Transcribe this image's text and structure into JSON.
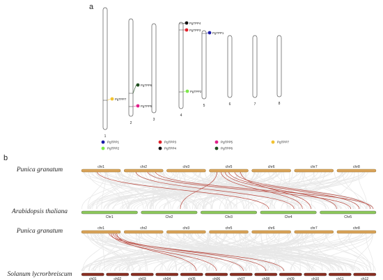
{
  "panel_a": {
    "label": "a",
    "chromosomes": [
      {
        "id": "1",
        "label": "1",
        "length": 175
      },
      {
        "id": "2",
        "label": "2",
        "length": 140
      },
      {
        "id": "3",
        "label": "3",
        "length": 128
      },
      {
        "id": "4",
        "label": "4",
        "length": 124
      },
      {
        "id": "5",
        "label": "5",
        "length": 98
      },
      {
        "id": "6",
        "label": "6",
        "length": 89
      },
      {
        "id": "7",
        "label": "7",
        "length": 89
      },
      {
        "id": "8",
        "label": "8",
        "length": 88
      }
    ],
    "genes": [
      {
        "name": "PgTPP1",
        "chromosome": "5",
        "color": "#1a1aa8"
      },
      {
        "name": "PgTPP2",
        "chromosome": "4",
        "color": "#7ee84a"
      },
      {
        "name": "PgTPP3",
        "chromosome": "4",
        "color": "#e0202a"
      },
      {
        "name": "PgTPP4",
        "chromosome": "4",
        "color": "#111111"
      },
      {
        "name": "PgTPP5",
        "chromosome": "2",
        "color": "#e0208a"
      },
      {
        "name": "PgTPP6",
        "chromosome": "2",
        "color": "#1f4d1f"
      },
      {
        "name": "PgTPP7",
        "chromosome": "1",
        "color": "#f2c230"
      }
    ],
    "legend": [
      {
        "name": "PgTPP1",
        "color": "#1a1aa8"
      },
      {
        "name": "PgTPP3",
        "color": "#e0202a"
      },
      {
        "name": "PgTPP5",
        "color": "#e0208a"
      },
      {
        "name": "PgTPP7",
        "color": "#f2c230"
      },
      {
        "name": "PgTPP2",
        "color": "#7ee84a"
      },
      {
        "name": "PgTPP4",
        "color": "#111111"
      },
      {
        "name": "PgTPP6",
        "color": "#1f4d1f"
      }
    ]
  },
  "panel_b": {
    "label": "b",
    "comparisons": [
      {
        "top_species": "Punica granatum",
        "bottom_species": "Arabidopsis thaliana",
        "top_color": "#d9a35a",
        "bottom_color": "#8cc85a",
        "top_chromosomes": [
          "chr1",
          "chr2",
          "chr3",
          "chr5",
          "chr6",
          "chr7",
          "chr8"
        ],
        "bottom_chromosomes": [
          "Chr1",
          "Chr2",
          "Chr3",
          "Chr4",
          "Chr5"
        ]
      },
      {
        "top_species": "Punica granatum",
        "bottom_species": "Solanum lycrorbreiscum",
        "top_color": "#d9a35a",
        "bottom_color": "#8a2e22",
        "top_chromosomes": [
          "chr1",
          "chr2",
          "chr3",
          "chr5",
          "chr6",
          "chr7",
          "chr8"
        ],
        "bottom_chromosomes": [
          "ch01",
          "ch02",
          "ch03",
          "ch04",
          "ch05",
          "ch06",
          "ch07",
          "ch08",
          "ch09",
          "ch10",
          "ch11",
          "ch12"
        ]
      }
    ],
    "link_color": "#b8463c",
    "background_link_color": "#d6d6d6"
  }
}
